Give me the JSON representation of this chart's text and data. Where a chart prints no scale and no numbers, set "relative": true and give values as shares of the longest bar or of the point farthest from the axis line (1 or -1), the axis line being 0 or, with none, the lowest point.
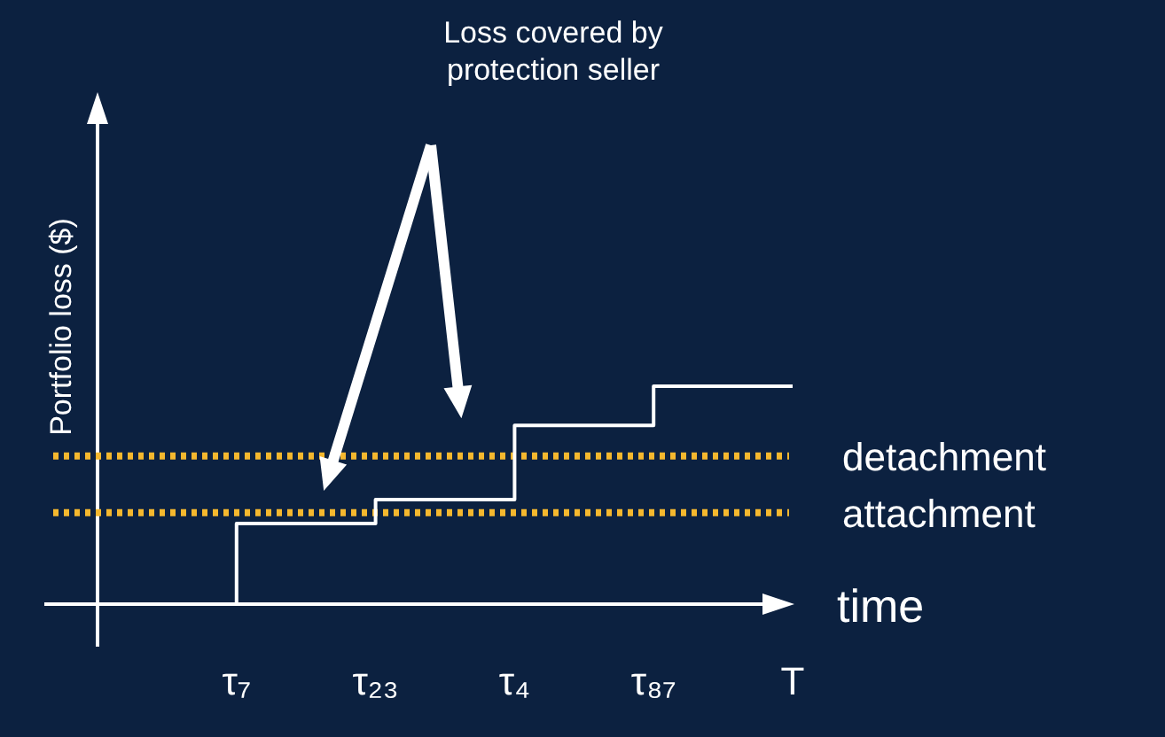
{
  "chart_data": {
    "type": "step",
    "relative": true,
    "xlabel": "time",
    "ylabel": "Portfolio loss ($)",
    "categories": [
      null,
      "τ₇",
      "τ₂₃",
      "τ₄",
      "τ₈₇",
      "T"
    ],
    "series": [
      {
        "color": "#ffffff",
        "values": [
          0,
          0.37,
          0.48,
          0.82,
          1,
          1
        ]
      }
    ],
    "ref_lines": [
      {
        "axis": "y",
        "value": 0.42,
        "label": "attachment",
        "color": "#f5b82e",
        "line_style": "dotted"
      },
      {
        "axis": "y",
        "value": 0.68,
        "label": "detachment",
        "color": "#f5b82e",
        "line_style": "dotted"
      }
    ],
    "annotations": [
      "Loss covered by protection seller"
    ]
  }
}
